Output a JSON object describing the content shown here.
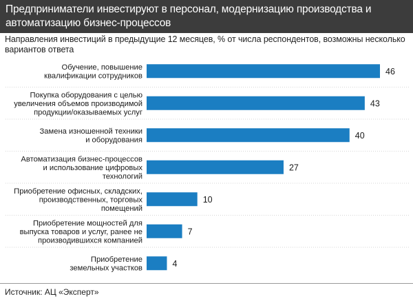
{
  "title": "Предприниматели инвестируют в персонал, модернизацию производства и автоматизацию бизнес-процессов",
  "subtitle": "Направления инвестиций в предыдущие 12 месяцев, % от числа респондентов, возможны несколько вариантов ответа",
  "source": "Источник: АЦ «Эксперт»",
  "colors": {
    "bar": "#1b7ec2",
    "header_bg": "#3c3c3c",
    "gridline": "#c8c8c8"
  },
  "chart_data": {
    "type": "bar",
    "orientation": "horizontal",
    "categories": [
      [
        "Обучение, повышение",
        "квалификации сотрудников"
      ],
      [
        "Покупка оборудования  с целью",
        "увеличения объемов производимой",
        "продукции/оказываемых услуг"
      ],
      [
        "Замена изношенной техники",
        "и оборудования"
      ],
      [
        "Автоматизация бизнес-процессов",
        "и использование цифровых",
        "технологий"
      ],
      [
        "Приобретение офисных, складских,",
        "производственных, торговых",
        "помещений"
      ],
      [
        "Приобретение мощностей для",
        "выпуска товаров и услуг, ранее не",
        "производившихся компанией"
      ],
      [
        "Приобретение",
        "земельных участков"
      ]
    ],
    "values": [
      46,
      43,
      40,
      27,
      10,
      7,
      4
    ],
    "xlim": [
      0,
      46
    ],
    "grid": true
  }
}
